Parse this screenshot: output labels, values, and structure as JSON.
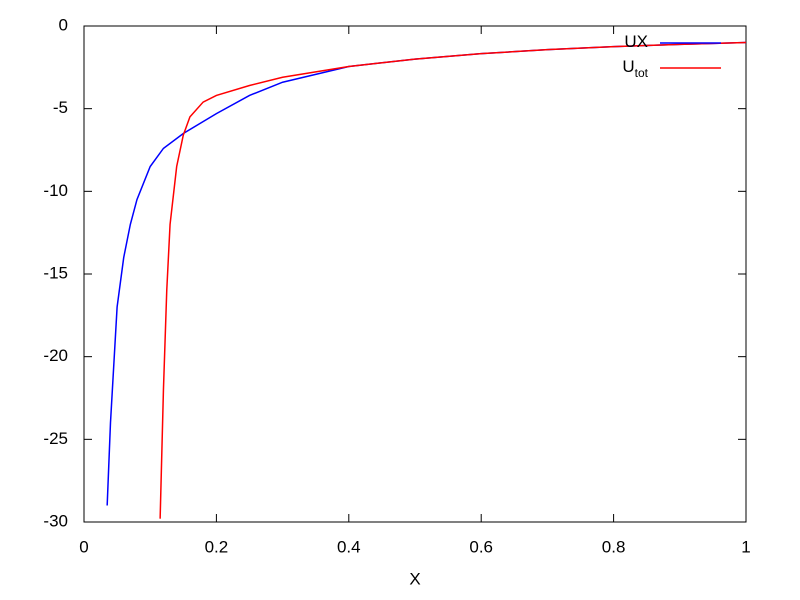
{
  "chart_data": {
    "type": "line",
    "xlabel": "X",
    "xlim": [
      0,
      1
    ],
    "xticks": [
      0,
      0.2,
      0.4,
      0.6,
      0.8,
      1
    ],
    "ylim": [
      -30,
      0
    ],
    "yticks": [
      0,
      -5,
      -10,
      -15,
      -20,
      -25,
      -30
    ],
    "legend": "top-right",
    "series": [
      {
        "name": "UX",
        "color": "#0000ff",
        "x": [
          0.035,
          0.04,
          0.05,
          0.06,
          0.07,
          0.08,
          0.1,
          0.12,
          0.15,
          0.2,
          0.25,
          0.3,
          0.4,
          0.5,
          0.6,
          0.7,
          0.8,
          0.9,
          1.0
        ],
        "values": [
          -29,
          -24,
          -17,
          -14,
          -12,
          -10.5,
          -8.5,
          -7.4,
          -6.5,
          -5.3,
          -4.2,
          -3.4,
          -2.45,
          -2.0,
          -1.67,
          -1.43,
          -1.25,
          -1.11,
          -1.0
        ]
      },
      {
        "name": "U",
        "subscript": "tot",
        "color": "#ff0000",
        "x": [
          0.115,
          0.12,
          0.125,
          0.13,
          0.14,
          0.15,
          0.16,
          0.18,
          0.2,
          0.25,
          0.3,
          0.4,
          0.5,
          0.6,
          0.7,
          0.8,
          0.9,
          1.0
        ],
        "values": [
          -29.8,
          -22,
          -16,
          -12,
          -8.5,
          -6.6,
          -5.5,
          -4.6,
          -4.2,
          -3.6,
          -3.1,
          -2.45,
          -2.0,
          -1.67,
          -1.43,
          -1.25,
          -1.11,
          -1.0
        ]
      }
    ]
  }
}
